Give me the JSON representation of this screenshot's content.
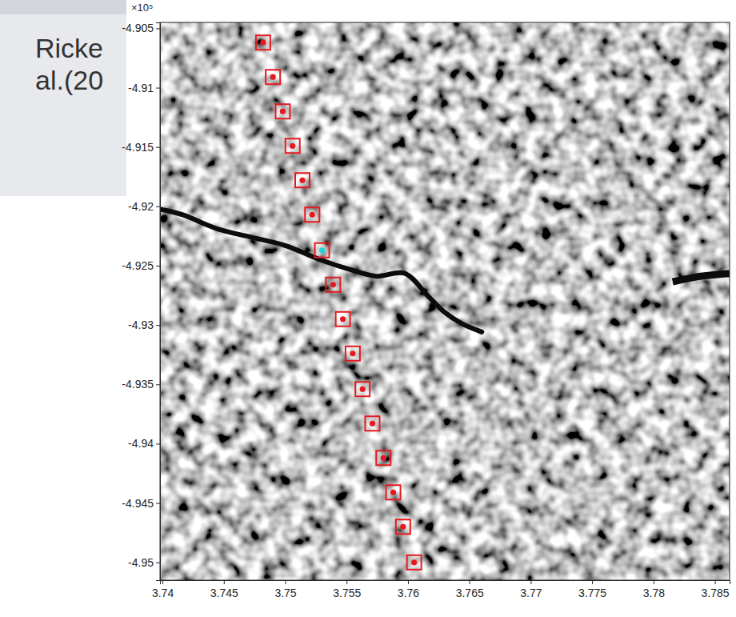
{
  "chart_data": {
    "type": "scatter",
    "annotations": [
      "Ricke",
      "al.(20",
      "×10⁵"
    ],
    "x": [
      3.7482,
      3.749,
      3.7498,
      3.7506,
      3.7514,
      3.7522,
      3.753,
      3.7539,
      3.7547,
      3.7555,
      3.7563,
      3.7571,
      3.758,
      3.7588,
      3.7596,
      3.7605
    ],
    "values": [
      -4.9062,
      -4.9091,
      -4.912,
      -4.9149,
      -4.9178,
      -4.9207,
      -4.9237,
      -4.9266,
      -4.9295,
      -4.9324,
      -4.9354,
      -4.9383,
      -4.9412,
      -4.9441,
      -4.947,
      -4.95
    ],
    "marker": "square",
    "color": "#e5191f",
    "colors": [
      "#e5191f",
      "#e5191f",
      "#e5191f",
      "#e5191f",
      "#e5191f",
      "#e5191f",
      "#1fd3d8",
      "#e5191f",
      "#e5191f",
      "#e5191f",
      "#e5191f",
      "#e5191f",
      "#e5191f",
      "#e5191f",
      "#e5191f",
      "#e5191f"
    ],
    "xlim": [
      3.7398,
      3.7862
    ],
    "ylim": [
      -4.9515,
      -4.9045
    ],
    "xticks": [
      3.74,
      3.745,
      3.75,
      3.755,
      3.76,
      3.765,
      3.77,
      3.775,
      3.78,
      3.785
    ],
    "yticks": [
      -4.95,
      -4.945,
      -4.94,
      -4.935,
      -4.93,
      -4.925,
      -4.92,
      -4.915,
      -4.91,
      -4.905
    ]
  }
}
